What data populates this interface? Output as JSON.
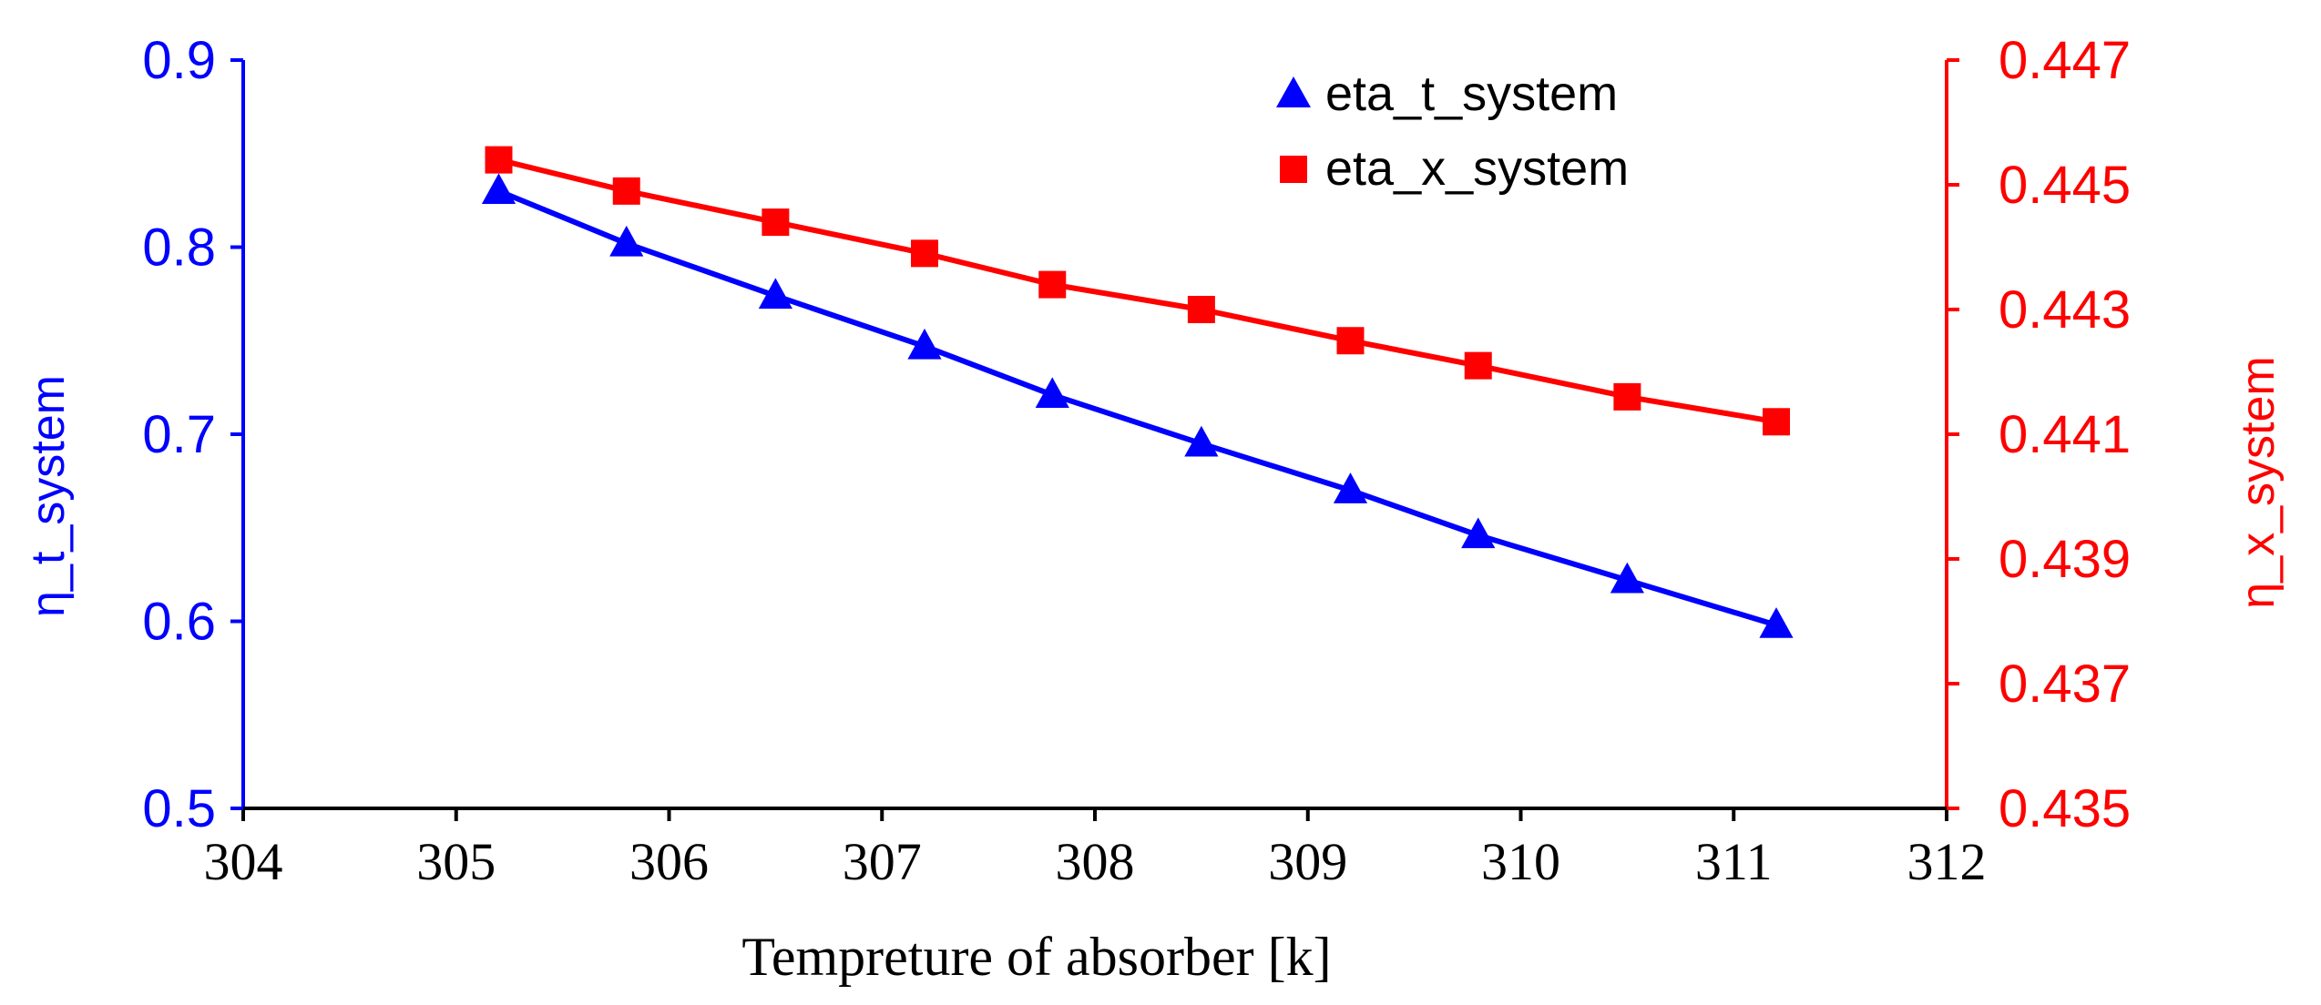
{
  "chart_data": {
    "type": "line",
    "title": "",
    "xlabel": "Tempreture of absorber [k]",
    "ylabel_left": "η_t_system",
    "ylabel_right": "η_x_system",
    "xlim": [
      304,
      312
    ],
    "ylim_left": [
      0.5,
      0.9
    ],
    "ylim_right": [
      0.435,
      0.447
    ],
    "xticks": [
      "304",
      "305",
      "306",
      "307",
      "308",
      "309",
      "310",
      "311",
      "312"
    ],
    "yticks_left": [
      "0.5",
      "0.6",
      "0.7",
      "0.8",
      "0.9"
    ],
    "yticks_right": [
      "0.435",
      "0.437",
      "0.439",
      "0.441",
      "0.443",
      "0.445",
      "0.447"
    ],
    "x": [
      305.2,
      305.8,
      306.5,
      307.2,
      307.8,
      308.5,
      309.2,
      309.8,
      310.5,
      311.2
    ],
    "series": [
      {
        "name": "eta_t_system",
        "axis": "left",
        "marker": "triangle",
        "color": "#0000FF",
        "values": [
          0.83,
          0.802,
          0.774,
          0.747,
          0.721,
          0.695,
          0.67,
          0.646,
          0.622,
          0.598
        ]
      },
      {
        "name": "eta_x_system",
        "axis": "right",
        "marker": "square",
        "color": "#FF0000",
        "values": [
          0.4454,
          0.4449,
          0.4444,
          0.4439,
          0.4434,
          0.443,
          0.4425,
          0.4421,
          0.4416,
          0.4412
        ]
      }
    ],
    "legend_position": "top-right",
    "grid": false,
    "axis_color": "#000000"
  }
}
